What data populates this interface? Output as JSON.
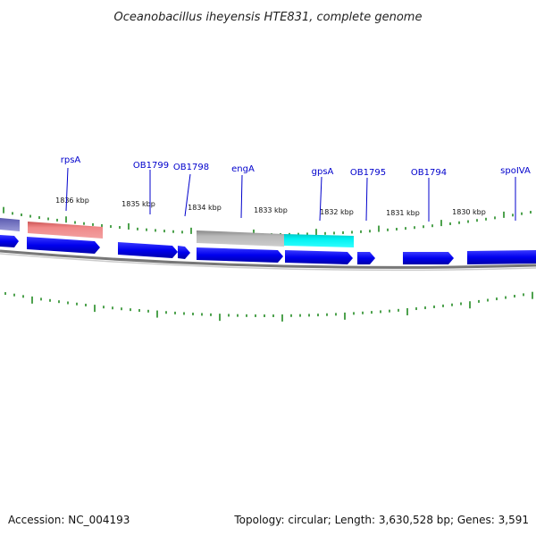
{
  "title": "Oceanobacillus iheyensis HTE831, complete genome",
  "gene_labels": [
    "rpsA",
    "OB1799",
    "OB1798",
    "engA",
    "gpsA",
    "OB1795",
    "OB1794",
    "spoIVA"
  ],
  "kbp_labels": [
    "1836 kbp",
    "1835 kbp",
    "1834 kbp",
    "1833 kbp",
    "1832 kbp",
    "1831 kbp",
    "1830 kbp"
  ],
  "footer": {
    "accession": "Accession: NC_004193",
    "summary": "Topology: circular; Length: 3,630,528 bp; Genes: 3,591"
  },
  "colors": {
    "gene_arrow": "#0000ee",
    "rrna_feature": "#ee7777",
    "trna_feature": "#00eeee",
    "misc_feature": "#aaaaaa",
    "backbone": "#777777",
    "tick": "#228b22",
    "label_line": "#0000cc"
  }
}
